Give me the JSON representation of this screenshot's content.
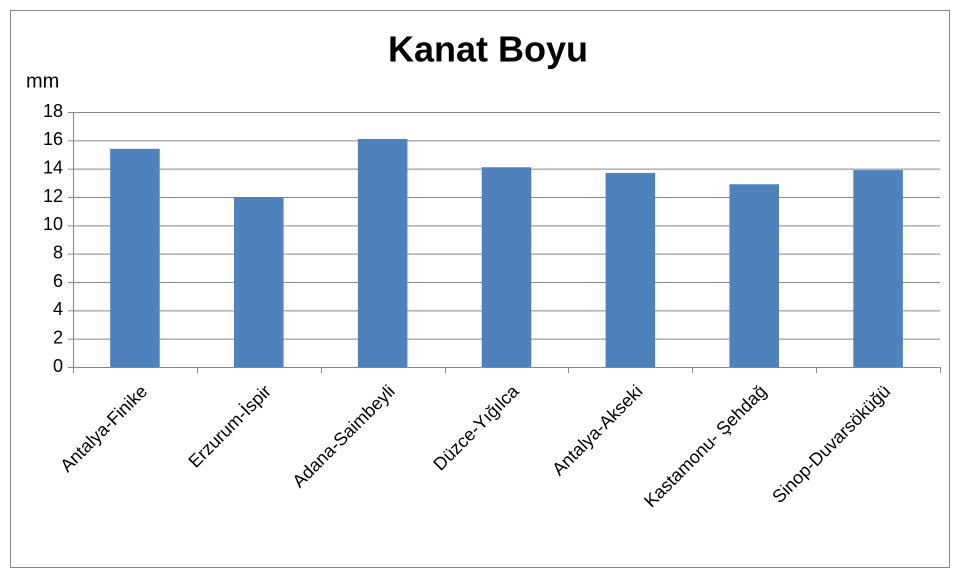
{
  "chart_data": {
    "type": "bar",
    "title": "Kanat Boyu",
    "y_label": "mm",
    "categories": [
      "Antalya-Finike",
      "Erzurum-İspir",
      "Adana-Saimbeyli",
      "Düzce-Yığılca",
      "Antalya-Akseki",
      "Kastamonu- Şehdağ",
      "Sinop-Duvarsöküğü"
    ],
    "values": [
      15.4,
      12.0,
      16.1,
      14.1,
      13.7,
      12.9,
      13.9
    ],
    "color": "#4f81bd",
    "ylim": [
      0,
      18
    ],
    "yticks": [
      0,
      2,
      4,
      6,
      8,
      10,
      12,
      14,
      16,
      18
    ],
    "grid": true
  }
}
